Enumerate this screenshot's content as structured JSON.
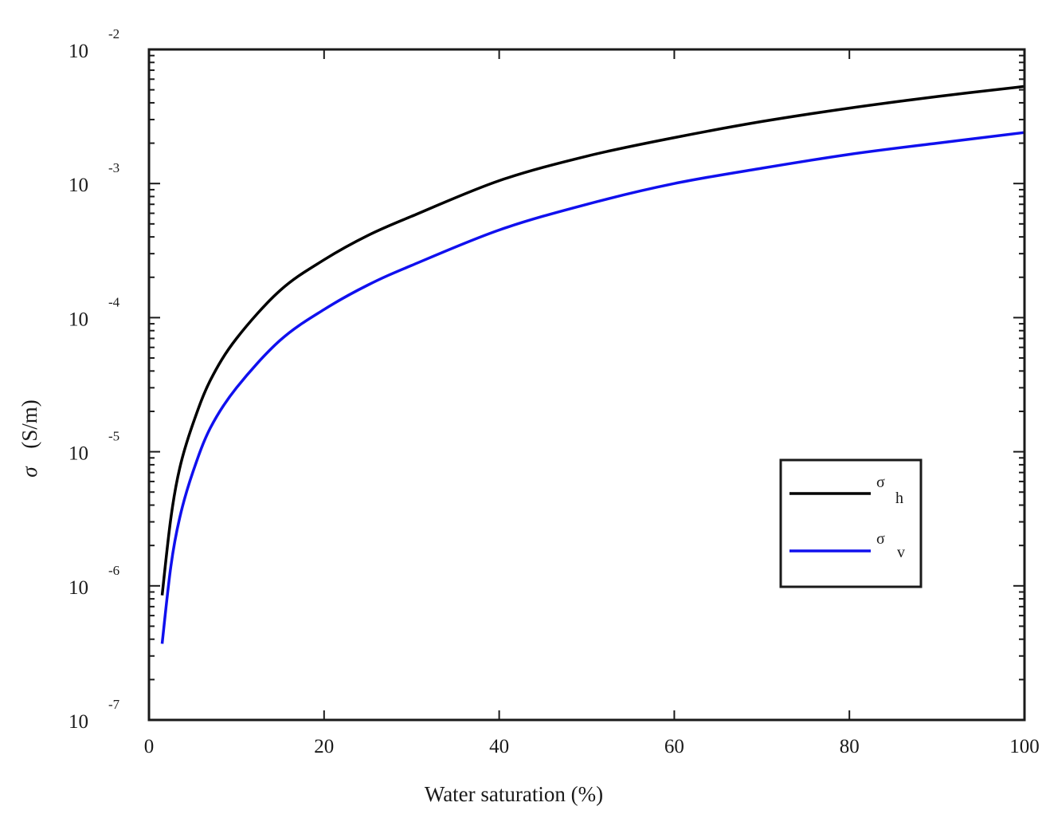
{
  "chart_data": {
    "type": "line",
    "xlabel": "Water saturation (%)",
    "ylabel": {
      "symbol": "σ",
      "units": "(S/m)"
    },
    "xlim": [
      0,
      100
    ],
    "ylim": [
      1e-07,
      0.01
    ],
    "yscale": "log",
    "x_ticks": [
      "0",
      "20",
      "40",
      "60",
      "80",
      "100"
    ],
    "y_ticks": [
      {
        "base": "10",
        "exp": "-7",
        "value": 1e-07
      },
      {
        "base": "10",
        "exp": "-6",
        "value": 1e-06
      },
      {
        "base": "10",
        "exp": "-5",
        "value": 1e-05
      },
      {
        "base": "10",
        "exp": "-4",
        "value": 0.0001
      },
      {
        "base": "10",
        "exp": "-3",
        "value": 0.001
      },
      {
        "base": "10",
        "exp": "-2",
        "value": 0.01
      }
    ],
    "grid": false,
    "legend_placement": "lower-right",
    "series": [
      {
        "name": "σh",
        "legend_symbol": "σ",
        "legend_subscript": "h",
        "color": "#000000",
        "x": [
          1.5,
          2.5,
          3.5,
          5,
          7,
          10,
          15,
          20,
          25,
          30,
          40,
          50,
          60,
          70,
          80,
          90,
          100
        ],
        "y": [
          8.5e-07,
          3.2e-06,
          7.5e-06,
          1.6e-05,
          3.4e-05,
          7e-05,
          0.00016,
          0.00027,
          0.00041,
          0.00057,
          0.00105,
          0.0016,
          0.0022,
          0.0029,
          0.00365,
          0.00445,
          0.0053
        ]
      },
      {
        "name": "σv",
        "legend_symbol": "σ",
        "legend_subscript": "v",
        "color": "#1010ee",
        "x": [
          1.5,
          2.5,
          3.5,
          5,
          7,
          10,
          15,
          20,
          25,
          30,
          40,
          50,
          60,
          70,
          80,
          90,
          100
        ],
        "y": [
          3.7e-07,
          1.4e-06,
          3.2e-06,
          7e-06,
          1.5e-05,
          3e-05,
          6.8e-05,
          0.000115,
          0.000175,
          0.000245,
          0.00045,
          0.0007,
          0.001,
          0.0013,
          0.00165,
          0.002,
          0.0024
        ]
      }
    ]
  }
}
